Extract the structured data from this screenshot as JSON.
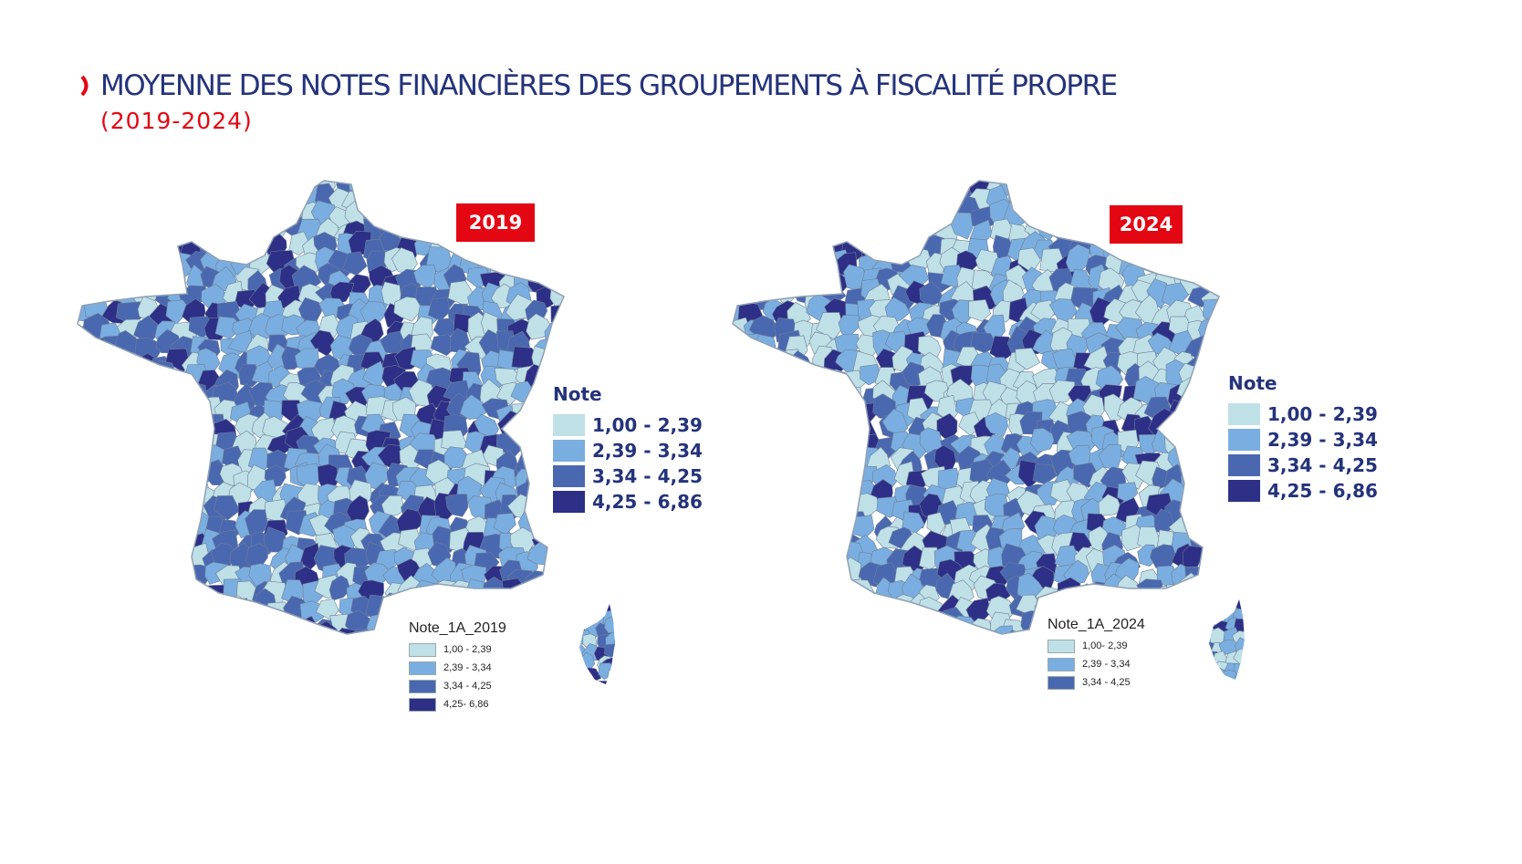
{
  "title": "MOYENNE DES NOTES FINANCIÈRES DES GROUPEMENTS À FISCALITÉ PROPRE",
  "subtitle": "(2019-2024)",
  "colors": {
    "title": "#24337a",
    "accent": "#e30613",
    "c1": "#bfe0e6",
    "c2": "#7aaee0",
    "c3": "#4a68b0",
    "c4": "#2e2f86",
    "border": "#6e7f99"
  },
  "maps": [
    {
      "year": "2019",
      "legend": {
        "title": "Note",
        "items": [
          "1,00 - 2,39",
          "2,39 - 3,34",
          "3,34 - 4,25",
          "4,25 - 6,86"
        ]
      },
      "small_legend": {
        "title": "Note_1A_2019",
        "items": [
          "1,00 - 2,39",
          "2,39 - 3,34",
          "3,34 - 4,25",
          "4,25- 6,86"
        ]
      }
    },
    {
      "year": "2024",
      "legend": {
        "title": "Note",
        "items": [
          "1,00 - 2,39",
          "2,39 - 3,34",
          "3,34 - 4,25",
          "4,25 - 6,86"
        ]
      },
      "small_legend": {
        "title": "Note_1A_2024",
        "items": [
          "1,00- 2,39",
          "2,39 - 3,34",
          "3,34 - 4,25"
        ]
      }
    }
  ]
}
